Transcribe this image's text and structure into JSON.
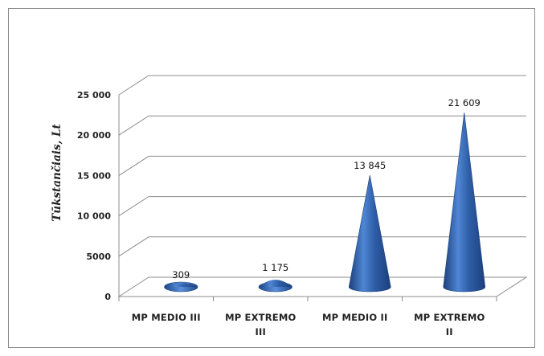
{
  "chart_data": {
    "type": "bar",
    "shape": "cone-3d",
    "categories": [
      [
        "MP MEDIO III"
      ],
      [
        "MP EXTREMO",
        "III"
      ],
      [
        "MP MEDIO II"
      ],
      [
        "MP EXTREMO",
        "II"
      ]
    ],
    "values": [
      309,
      1175,
      13845,
      21609
    ],
    "data_labels": [
      "309",
      "1 175",
      "13 845",
      "21 609"
    ],
    "title": "",
    "xlabel": "",
    "ylabel": "Tūkstančiais, Lt",
    "ylim": [
      0,
      25000
    ],
    "yticks": [
      0,
      5000,
      10000,
      15000,
      20000,
      25000
    ],
    "ytick_labels": [
      "0",
      "5000",
      "10 000",
      "15 000",
      "20 000",
      "25 000"
    ],
    "grid": true,
    "legend": "none",
    "colors": {
      "bar": "#2f5fa8",
      "bar_light": "#6f9be0",
      "bar_dark": "#1b3f7a",
      "grid": "#8c8c8c"
    }
  }
}
